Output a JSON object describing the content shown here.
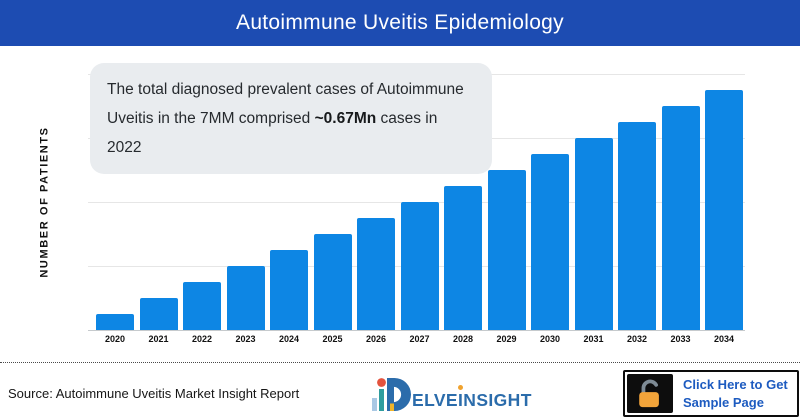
{
  "header": {
    "title": "Autoimmune Uveitis Epidemiology",
    "bg_color": "#1d4cb2",
    "text_color": "#ffffff"
  },
  "annotation": {
    "line1": "The total diagnosed prevalent cases of Autoimmune",
    "line2_prefix": "Uveitis in the 7MM comprised ",
    "line2_bold": "~0.67Mn",
    "line2_suffix": " cases in 2022",
    "bg_color": "#e9ecef"
  },
  "chart_data": {
    "type": "bar",
    "title": "Autoimmune Uveitis Epidemiology",
    "ylabel": "NUMBER OF PATIENTS",
    "xlabel": "",
    "categories": [
      "2020",
      "2021",
      "2022",
      "2023",
      "2024",
      "2025",
      "2026",
      "2027",
      "2028",
      "2029",
      "2030",
      "2031",
      "2032",
      "2033",
      "2034"
    ],
    "values": [
      1,
      2,
      3,
      4,
      5,
      6,
      7,
      8,
      9,
      10,
      11,
      12,
      13,
      14,
      15
    ],
    "units": "relative height units (y-axis has no tick labels)",
    "estimated_values_mn": [
      0.22,
      0.45,
      0.67,
      0.89,
      1.12,
      1.34,
      1.56,
      1.79,
      2.01,
      2.23,
      2.46,
      2.68,
      2.9,
      3.12,
      3.35
    ],
    "estimation_note": "Bars grow linearly; annotation anchors 2022 at ~0.67Mn diagnosed prevalent cases in the 7MM",
    "ylim": [
      0,
      16
    ],
    "gridline_interval": 4,
    "grid": "horizontal lines only",
    "legend": "none",
    "bar_color": "#0d86e4"
  },
  "footer": {
    "source": "Source: Autoimmune Uveitis Market Insight Report",
    "logo": {
      "name": "DelveInsight",
      "part_elve": "ELVE",
      "part_i": "I",
      "part_nsight": "NSIGHT",
      "blue": "#2b6cab",
      "accent_red": "#e4533e",
      "accent_teal": "#2f9d9e",
      "accent_lightblue": "#a9c8e4",
      "accent_yellow": "#f0b429"
    },
    "cta": {
      "line1": "Click Here to Get",
      "line2": "Sample Page",
      "icon": "open-padlock",
      "lock_color": "#f2a43a",
      "shackle_color": "#7e8b95",
      "text_color": "#1d5bc0"
    }
  }
}
